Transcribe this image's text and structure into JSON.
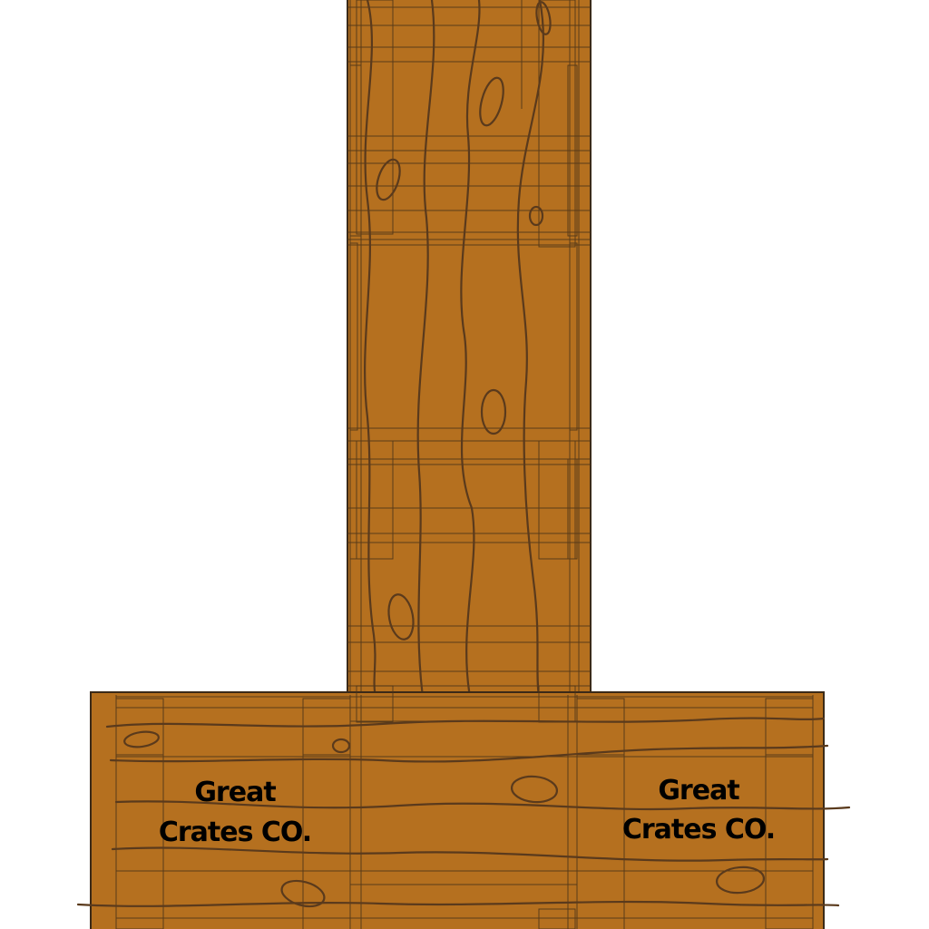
{
  "scene": {
    "colors": {
      "background": "#ffffff",
      "wood": "#b5701f",
      "outline": "#3b2a18",
      "grain": "#5a3a1c",
      "frame": "#4a3218"
    },
    "crates": [
      {
        "name": "vertical-crate-stack",
        "stamp_lines": []
      },
      {
        "name": "horizontal-crate-row",
        "stamp_lines": [
          "Great",
          "Crates CO."
        ]
      }
    ],
    "stamps": {
      "left": {
        "line1": "Great",
        "line2": "Crates CO."
      },
      "right": {
        "line1": "Great",
        "line2": "Crates CO."
      }
    }
  }
}
